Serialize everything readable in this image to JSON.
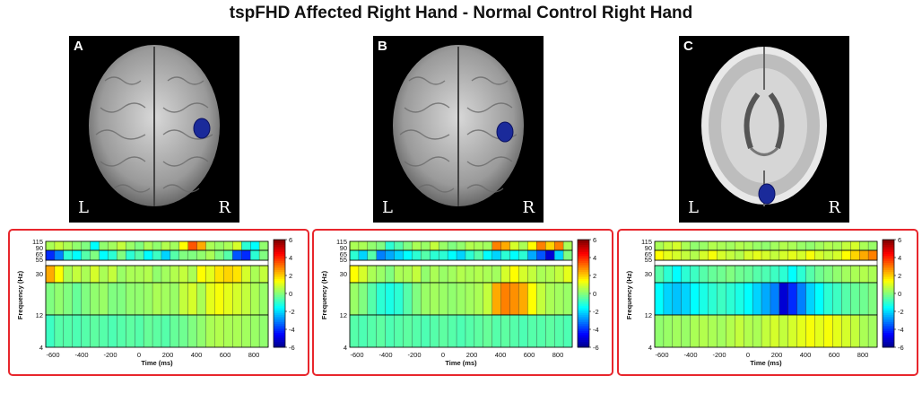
{
  "title": "tspFHD Affected Right Hand - Normal Control Right Hand",
  "panels": [
    {
      "letter": "A",
      "view": "top",
      "left_label": "L",
      "right_label": "R"
    },
    {
      "letter": "B",
      "view": "top",
      "left_label": "L",
      "right_label": "R"
    },
    {
      "letter": "C",
      "view": "axial",
      "left_label": "L",
      "right_label": "R"
    }
  ],
  "colors": {
    "frame": "#e8262c",
    "source": "#1a2a9a",
    "background": "#000000"
  },
  "chart_data": [
    {
      "type": "heatmap",
      "xlabel": "Time (ms)",
      "ylabel": "Frequency (Hz)",
      "x_ticks": [
        -600,
        -400,
        -200,
        0,
        200,
        400,
        600,
        800
      ],
      "y_ticks": [
        4,
        12,
        30,
        55,
        65,
        90,
        115
      ],
      "xlim": [
        -650,
        900
      ],
      "colorbar_ticks": [
        6,
        4,
        2,
        0,
        -2,
        -4,
        -6
      ],
      "colorbar_range": [
        -6,
        6
      ],
      "bands": [
        {
          "range": [
            90,
            115
          ],
          "values": [
            0.5,
            0.8,
            0.5,
            0.2,
            0,
            -1.5,
            0.2,
            0.4,
            0.8,
            0.3,
            0,
            0.5,
            0.2,
            0.6,
            0.4,
            1.5,
            3.5,
            2.5,
            0.5,
            0.3,
            0.5,
            1,
            -1,
            -1.5,
            0.2
          ]
        },
        {
          "range": [
            65,
            90
          ],
          "values": [
            -4,
            -3,
            -1,
            -1.5,
            -0.5,
            0,
            -1.5,
            -1,
            0,
            -1,
            -0.5,
            -1.5,
            -0.8,
            -2,
            -0.5,
            0,
            0,
            0.2,
            0.5,
            0,
            -0.5,
            -3.5,
            -4,
            -1,
            0
          ]
        },
        {
          "range": [
            30,
            55
          ],
          "values": [
            2.5,
            1.5,
            0.5,
            0.8,
            0.5,
            1,
            0.5,
            0.8,
            0.3,
            0.5,
            0.5,
            0.6,
            0.2,
            0.4,
            0.6,
            0.8,
            0.5,
            1.5,
            1.2,
            1.8,
            2,
            1.8,
            1,
            0.5,
            0.8
          ]
        },
        {
          "range": [
            12,
            30
          ],
          "values": [
            0,
            0.2,
            0,
            -0.3,
            0,
            0.2,
            0.3,
            0,
            0,
            0.2,
            0.2,
            0.3,
            0.5,
            0.4,
            0.3,
            0.8,
            1,
            0.5,
            1.2,
            1.4,
            1.2,
            1,
            0.8,
            0.5,
            0.3
          ]
        },
        {
          "range": [
            4,
            12
          ],
          "values": [
            -0.8,
            -0.5,
            -0.5,
            -0.6,
            -0.5,
            -0.4,
            -0.5,
            -0.6,
            -0.5,
            -0.4,
            -0.5,
            -0.3,
            -0.4,
            -0.5,
            -0.3,
            -0.2,
            0,
            0.2,
            0.5,
            0.6,
            0.5,
            0.5,
            0.4,
            0.3,
            0.2
          ]
        }
      ]
    },
    {
      "type": "heatmap",
      "xlabel": "Time (ms)",
      "ylabel": "Frequency (Hz)",
      "x_ticks": [
        -600,
        -400,
        -200,
        0,
        200,
        400,
        600,
        800
      ],
      "y_ticks": [
        4,
        12,
        30,
        55,
        65,
        90,
        115
      ],
      "xlim": [
        -650,
        900
      ],
      "colorbar_ticks": [
        6,
        4,
        2,
        0,
        -2,
        -4,
        -6
      ],
      "colorbar_range": [
        -6,
        6
      ],
      "bands": [
        {
          "range": [
            90,
            115
          ],
          "values": [
            0.5,
            0.5,
            0.2,
            0,
            -1,
            -0.5,
            0,
            0.5,
            0.3,
            0.8,
            0.3,
            0,
            0.2,
            0.6,
            0.5,
            0.4,
            3,
            2.5,
            1,
            0.5,
            1.5,
            3,
            2,
            3,
            0.5
          ]
        },
        {
          "range": [
            65,
            90
          ],
          "values": [
            -1,
            -2,
            -0.5,
            -3,
            -2.5,
            -2,
            -1.5,
            -1,
            -0.5,
            -1,
            -1,
            -1.5,
            -2,
            -1,
            -0.5,
            -1.5,
            -2,
            -1,
            -1.5,
            -1,
            -2.5,
            -3.5,
            -5,
            -2,
            0
          ]
        },
        {
          "range": [
            30,
            55
          ],
          "values": [
            1.5,
            1,
            0.5,
            0.3,
            0,
            0.5,
            0.5,
            0.8,
            0.2,
            0.5,
            0.3,
            0.4,
            0.6,
            0.5,
            0.6,
            0.5,
            0.4,
            1,
            1.5,
            1,
            0.8,
            0.5,
            0.6,
            0.8,
            1.2
          ]
        },
        {
          "range": [
            12,
            30
          ],
          "values": [
            0.3,
            0,
            -0.5,
            -1,
            -1.2,
            -1,
            -0.5,
            0,
            0.3,
            0.4,
            0.3,
            0.2,
            0.3,
            0.4,
            0.5,
            0.8,
            2.5,
            3,
            2.8,
            2.5,
            1.5,
            0.8,
            0.5,
            0.4,
            0.3
          ]
        },
        {
          "range": [
            4,
            12
          ],
          "values": [
            -0.5,
            -0.6,
            -0.5,
            -0.4,
            -0.6,
            -0.5,
            -0.4,
            -0.5,
            -0.6,
            -0.5,
            -0.4,
            -0.5,
            -0.6,
            -0.5,
            -0.4,
            -0.3,
            -0.5,
            -0.4,
            -0.5,
            -0.6,
            -0.5,
            -0.5,
            -0.4,
            -0.5,
            -0.6
          ]
        }
      ]
    },
    {
      "type": "heatmap",
      "xlabel": "Time (ms)",
      "ylabel": "Frequency (Hz)",
      "x_ticks": [
        -600,
        -400,
        -200,
        0,
        200,
        400,
        600,
        800
      ],
      "y_ticks": [
        4,
        12,
        30,
        55,
        65,
        90,
        115
      ],
      "xlim": [
        -650,
        900
      ],
      "colorbar_ticks": [
        6,
        4,
        2,
        0,
        -2,
        -4,
        -6
      ],
      "colorbar_range": [
        -6,
        6
      ],
      "bands": [
        {
          "range": [
            90,
            115
          ],
          "values": [
            0.5,
            0.8,
            1,
            0.5,
            0.2,
            0.3,
            0.6,
            0.5,
            0.4,
            0.6,
            0.5,
            0.3,
            0.2,
            0.4,
            0.6,
            0.5,
            0.3,
            0.2,
            0.4,
            0.6,
            0.5,
            0.8,
            1,
            0.5,
            0.3
          ]
        },
        {
          "range": [
            65,
            90
          ],
          "values": [
            1.5,
            1.2,
            1,
            0.8,
            0.6,
            1,
            1.4,
            1,
            0.8,
            0.6,
            1,
            1.2,
            1,
            0.8,
            1,
            1.2,
            1,
            1.4,
            1,
            0.8,
            1,
            1.5,
            2,
            2.5,
            3
          ]
        },
        {
          "range": [
            30,
            55
          ],
          "values": [
            -0.5,
            -1,
            -1.5,
            -1,
            -0.8,
            -0.5,
            -0.3,
            -0.2,
            0,
            -0.2,
            -0.3,
            -0.5,
            -0.6,
            -0.8,
            -1,
            -1.5,
            -1,
            -0.5,
            -0.2,
            0,
            0.2,
            0.4,
            0.5,
            0.6,
            0.5
          ]
        },
        {
          "range": [
            12,
            30
          ],
          "values": [
            -1.5,
            -2,
            -2.2,
            -2,
            -1.5,
            -1.2,
            -1,
            -0.8,
            -1,
            -1.2,
            -1.5,
            -2,
            -2.5,
            -3,
            -5,
            -4,
            -3,
            -2,
            -1.5,
            -1,
            -0.8,
            -0.5,
            -0.3,
            -0.2,
            0
          ]
        },
        {
          "range": [
            4,
            12
          ],
          "values": [
            0.2,
            0.3,
            0.4,
            0.3,
            0.5,
            0.6,
            0.5,
            0.4,
            0.6,
            0.8,
            0.6,
            0.5,
            0.8,
            1,
            0.8,
            1,
            1.2,
            1.4,
            1.2,
            1.4,
            1.2,
            1,
            0.8,
            0.5,
            0.4
          ]
        }
      ]
    }
  ]
}
